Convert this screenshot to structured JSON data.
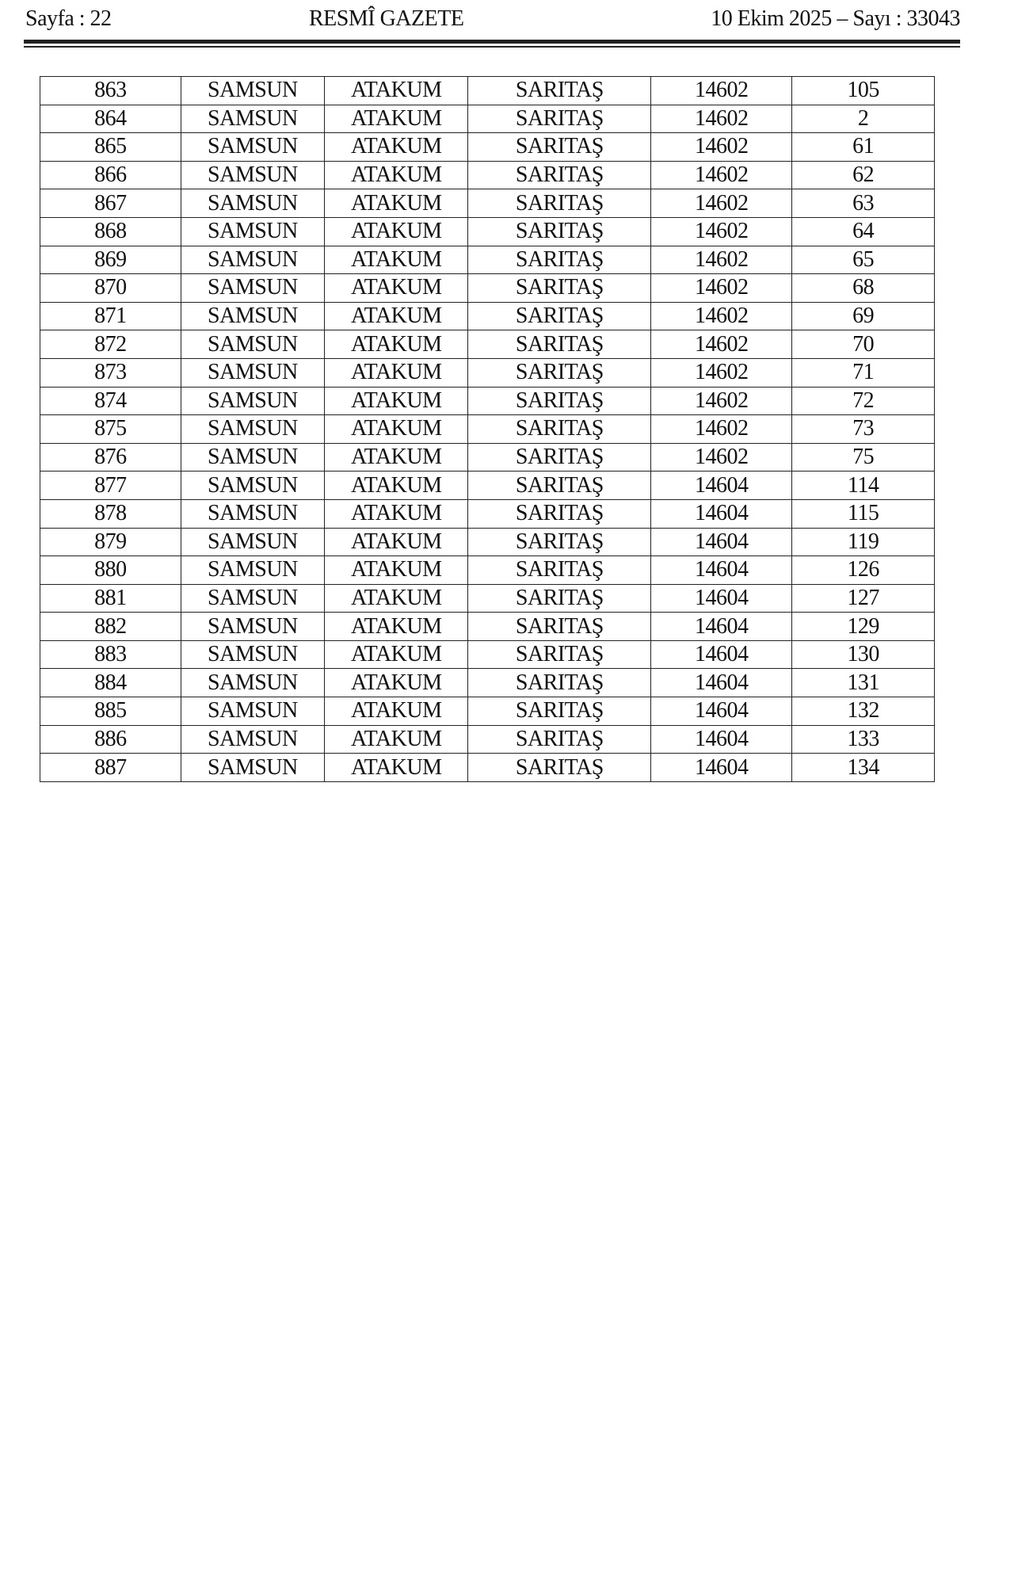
{
  "header": {
    "page": "Sayfa : 22",
    "title": "RESMÎ GAZETE",
    "date_issue": "10 Ekim 2025 – Sayı : 33043"
  },
  "table": {
    "rows": [
      [
        "863",
        "SAMSUN",
        "ATAKUM",
        "SARITAŞ",
        "14602",
        "105"
      ],
      [
        "864",
        "SAMSUN",
        "ATAKUM",
        "SARITAŞ",
        "14602",
        "2"
      ],
      [
        "865",
        "SAMSUN",
        "ATAKUM",
        "SARITAŞ",
        "14602",
        "61"
      ],
      [
        "866",
        "SAMSUN",
        "ATAKUM",
        "SARITAŞ",
        "14602",
        "62"
      ],
      [
        "867",
        "SAMSUN",
        "ATAKUM",
        "SARITAŞ",
        "14602",
        "63"
      ],
      [
        "868",
        "SAMSUN",
        "ATAKUM",
        "SARITAŞ",
        "14602",
        "64"
      ],
      [
        "869",
        "SAMSUN",
        "ATAKUM",
        "SARITAŞ",
        "14602",
        "65"
      ],
      [
        "870",
        "SAMSUN",
        "ATAKUM",
        "SARITAŞ",
        "14602",
        "68"
      ],
      [
        "871",
        "SAMSUN",
        "ATAKUM",
        "SARITAŞ",
        "14602",
        "69"
      ],
      [
        "872",
        "SAMSUN",
        "ATAKUM",
        "SARITAŞ",
        "14602",
        "70"
      ],
      [
        "873",
        "SAMSUN",
        "ATAKUM",
        "SARITAŞ",
        "14602",
        "71"
      ],
      [
        "874",
        "SAMSUN",
        "ATAKUM",
        "SARITAŞ",
        "14602",
        "72"
      ],
      [
        "875",
        "SAMSUN",
        "ATAKUM",
        "SARITAŞ",
        "14602",
        "73"
      ],
      [
        "876",
        "SAMSUN",
        "ATAKUM",
        "SARITAŞ",
        "14602",
        "75"
      ],
      [
        "877",
        "SAMSUN",
        "ATAKUM",
        "SARITAŞ",
        "14604",
        "114"
      ],
      [
        "878",
        "SAMSUN",
        "ATAKUM",
        "SARITAŞ",
        "14604",
        "115"
      ],
      [
        "879",
        "SAMSUN",
        "ATAKUM",
        "SARITAŞ",
        "14604",
        "119"
      ],
      [
        "880",
        "SAMSUN",
        "ATAKUM",
        "SARITAŞ",
        "14604",
        "126"
      ],
      [
        "881",
        "SAMSUN",
        "ATAKUM",
        "SARITAŞ",
        "14604",
        "127"
      ],
      [
        "882",
        "SAMSUN",
        "ATAKUM",
        "SARITAŞ",
        "14604",
        "129"
      ],
      [
        "883",
        "SAMSUN",
        "ATAKUM",
        "SARITAŞ",
        "14604",
        "130"
      ],
      [
        "884",
        "SAMSUN",
        "ATAKUM",
        "SARITAŞ",
        "14604",
        "131"
      ],
      [
        "885",
        "SAMSUN",
        "ATAKUM",
        "SARITAŞ",
        "14604",
        "132"
      ],
      [
        "886",
        "SAMSUN",
        "ATAKUM",
        "SARITAŞ",
        "14604",
        "133"
      ],
      [
        "887",
        "SAMSUN",
        "ATAKUM",
        "SARITAŞ",
        "14604",
        "134"
      ]
    ]
  }
}
